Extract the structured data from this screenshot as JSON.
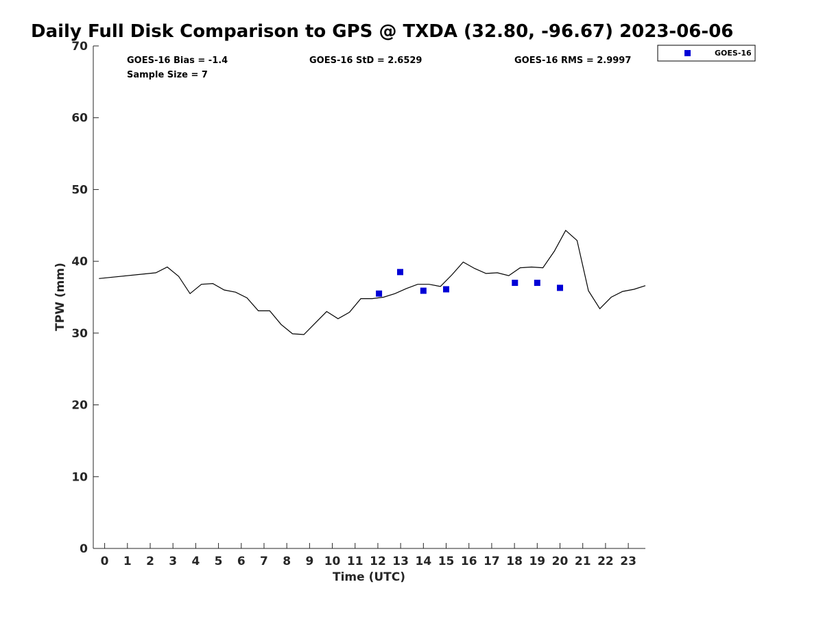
{
  "chart_data": {
    "type": "line",
    "title": "Daily Full Disk Comparison to GPS @ TXDA (32.80, -96.67) 2023-06-06",
    "xlabel": "Time (UTC)",
    "ylabel": "TPW (mm)",
    "xlim": [
      -0.5,
      23.75
    ],
    "ylim": [
      0,
      70
    ],
    "x_ticks": [
      0,
      1,
      2,
      3,
      4,
      5,
      6,
      7,
      8,
      9,
      10,
      11,
      12,
      13,
      14,
      15,
      16,
      17,
      18,
      19,
      20,
      21,
      22,
      23
    ],
    "y_ticks": [
      0,
      10,
      20,
      30,
      40,
      50,
      60,
      70
    ],
    "grid": false,
    "legend_position": "outside-top-right",
    "stats": {
      "bias": "GOES-16 Bias = -1.4",
      "sample_size": "Sample Size = 7",
      "std": "GOES-16 StD = 2.6529",
      "rms": "GOES-16 RMS = 2.9997"
    },
    "series": [
      {
        "type": "line",
        "color": "#000000",
        "x": [
          -0.25,
          2.25,
          2.75,
          3.25,
          3.75,
          4.25,
          4.75,
          5.25,
          5.75,
          6.25,
          6.75,
          7.25,
          7.75,
          8.25,
          8.75,
          9.25,
          9.75,
          10.25,
          10.75,
          11.25,
          11.75,
          12.25,
          12.75,
          13.25,
          13.75,
          14.25,
          14.75,
          15.25,
          15.75,
          16.25,
          16.75,
          17.25,
          17.75,
          18.25,
          18.75,
          19.25,
          19.75,
          20.25,
          20.75,
          21.25,
          21.75,
          22.25,
          22.75,
          23.25,
          23.75
        ],
        "y": [
          37.6,
          38.4,
          39.2,
          37.9,
          35.5,
          36.8,
          36.9,
          36.0,
          35.7,
          34.9,
          33.1,
          33.1,
          31.2,
          29.9,
          29.8,
          31.4,
          33.0,
          32.0,
          32.9,
          34.8,
          34.8,
          35.0,
          35.5,
          36.2,
          36.8,
          36.8,
          36.5,
          38.1,
          39.9,
          39.0,
          38.3,
          38.4,
          38.0,
          39.1,
          39.2,
          39.1,
          41.4,
          44.3,
          42.9,
          35.9,
          33.4,
          35.0,
          35.8,
          36.1,
          36.6
        ]
      },
      {
        "name": "GOES-16",
        "type": "scatter",
        "color": "#0000d6",
        "x": [
          12.05,
          12.98,
          14.0,
          15.0,
          18.02,
          19.0,
          20.0
        ],
        "y": [
          35.5,
          38.5,
          35.9,
          36.1,
          37.0,
          37.0,
          36.3
        ]
      }
    ]
  }
}
